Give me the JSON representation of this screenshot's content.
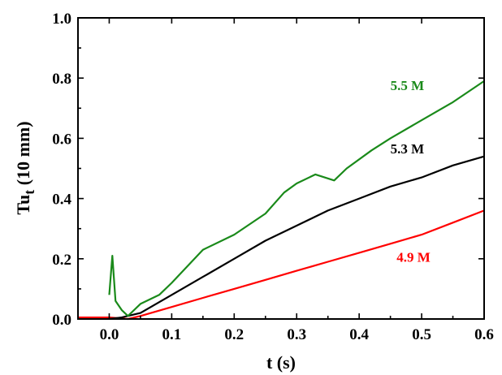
{
  "chart_data": {
    "type": "line",
    "xlabel": "t (s)",
    "ylabel": {
      "main": "Tu",
      "sub": "t",
      "unit": "(10 mm)"
    },
    "xlim": [
      -0.05,
      0.6
    ],
    "ylim": [
      0.0,
      1.0
    ],
    "xticks": [
      0.0,
      0.1,
      0.2,
      0.3,
      0.4,
      0.5,
      0.6
    ],
    "xtick_labels": [
      "0.0",
      "0.1",
      "0.2",
      "0.3",
      "0.4",
      "0.5",
      "0.6"
    ],
    "yticks": [
      0.0,
      0.2,
      0.4,
      0.6,
      0.8,
      1.0
    ],
    "ytick_labels": [
      "0.0",
      "0.2",
      "0.4",
      "0.6",
      "0.8",
      "1.0"
    ],
    "grid": false,
    "series": [
      {
        "name": "4.9 M",
        "color": "#ff0000",
        "x": [
          -0.05,
          0.0,
          0.03,
          0.05,
          0.1,
          0.15,
          0.2,
          0.25,
          0.3,
          0.35,
          0.4,
          0.45,
          0.5,
          0.55,
          0.6
        ],
        "y": [
          0.005,
          0.005,
          0.0,
          0.01,
          0.04,
          0.07,
          0.1,
          0.13,
          0.16,
          0.19,
          0.22,
          0.25,
          0.28,
          0.32,
          0.36
        ]
      },
      {
        "name": "5.3 M",
        "color": "#000000",
        "x": [
          0.0,
          0.02,
          0.05,
          0.1,
          0.15,
          0.2,
          0.25,
          0.3,
          0.35,
          0.4,
          0.45,
          0.5,
          0.55,
          0.6
        ],
        "y": [
          0.0,
          0.005,
          0.02,
          0.08,
          0.14,
          0.2,
          0.26,
          0.31,
          0.36,
          0.4,
          0.44,
          0.47,
          0.51,
          0.54
        ]
      },
      {
        "name": "5.5 M",
        "color": "#1a8a1a",
        "x": [
          0.0,
          0.005,
          0.01,
          0.02,
          0.03,
          0.05,
          0.08,
          0.1,
          0.15,
          0.2,
          0.25,
          0.28,
          0.3,
          0.33,
          0.36,
          0.38,
          0.42,
          0.45,
          0.5,
          0.55,
          0.6
        ],
        "y": [
          0.08,
          0.21,
          0.06,
          0.03,
          0.01,
          0.05,
          0.08,
          0.12,
          0.23,
          0.28,
          0.35,
          0.42,
          0.45,
          0.48,
          0.46,
          0.5,
          0.56,
          0.6,
          0.66,
          0.72,
          0.79
        ]
      }
    ],
    "annotations": [
      {
        "text": "5.5 M",
        "color": "#1a8a1a",
        "x": 0.45,
        "y": 0.76
      },
      {
        "text": "5.3 M",
        "color": "#000000",
        "x": 0.45,
        "y": 0.55
      },
      {
        "text": "4.9 M",
        "color": "#ff0000",
        "x": 0.46,
        "y": 0.19
      }
    ]
  }
}
